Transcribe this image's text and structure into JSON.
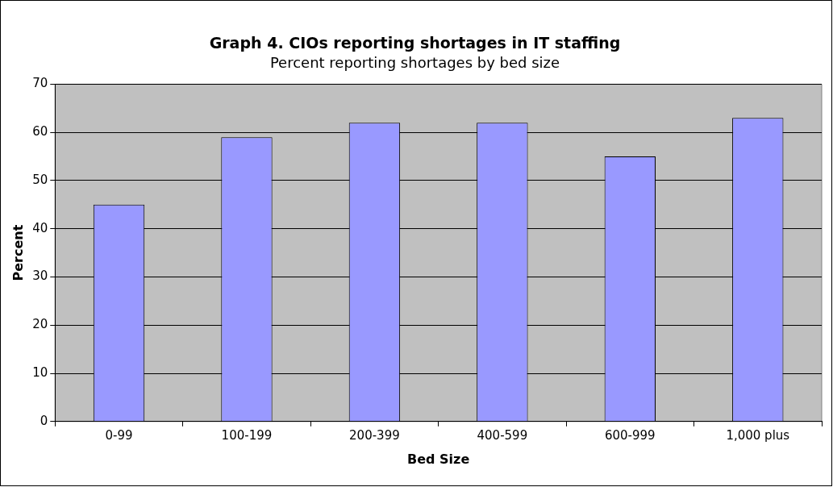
{
  "chart_data": {
    "type": "bar",
    "title": "Graph 4. CIOs reporting shortages in IT staffing",
    "subtitle": "Percent reporting shortages by bed size",
    "xlabel": "Bed Size",
    "ylabel": "Percent",
    "categories": [
      "0-99",
      "100-199",
      "200-399",
      "400-599",
      "600-999",
      "1,000 plus"
    ],
    "values": [
      45,
      59,
      62,
      62,
      55,
      63
    ],
    "color": "#9999ff",
    "ylim": [
      0,
      70
    ],
    "yticks": [
      0,
      10,
      20,
      30,
      40,
      50,
      60,
      70
    ],
    "grid": "y",
    "legend": false
  }
}
